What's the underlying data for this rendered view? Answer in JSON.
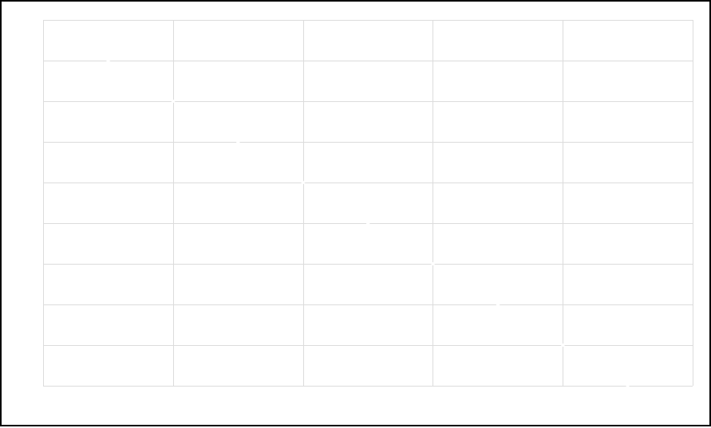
{
  "chart_data": {
    "type": "line",
    "title": "",
    "xlabel": "",
    "ylabel": "",
    "grid": true,
    "xlim": [
      0,
      5
    ],
    "ylim": [
      0,
      9
    ],
    "x": [
      0.5,
      1,
      1.5,
      2,
      2.5,
      3,
      3.5,
      4,
      4.5
    ],
    "series": [
      {
        "values": [
          8,
          7,
          6,
          5,
          4,
          3,
          2,
          1,
          0
        ]
      }
    ],
    "colors": {
      "grid": "#dcdcdc",
      "series": "#ffffff",
      "background": "#ffffff",
      "frame": "#000000"
    }
  }
}
